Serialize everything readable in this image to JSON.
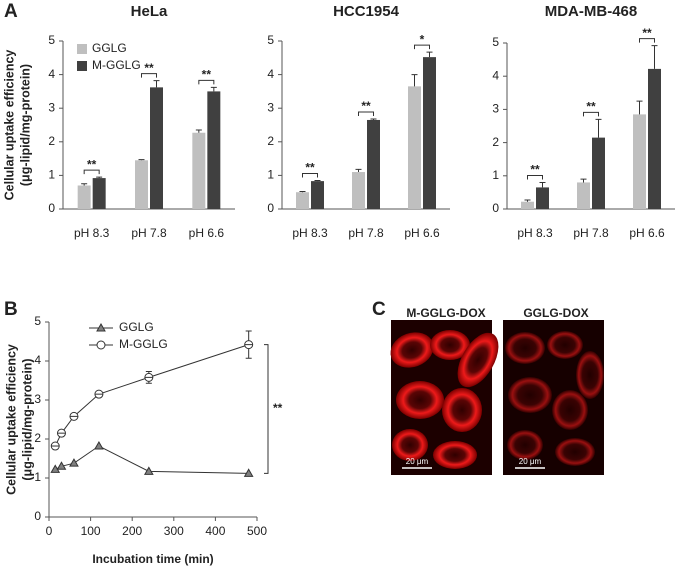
{
  "panel_labels": [
    "A",
    "B",
    "C"
  ],
  "images": [
    {
      "title": "M-GGLG-DOX",
      "scale_bar": "20 μm"
    },
    {
      "title": "GGLG-DOX",
      "scale_bar": "20 μm"
    }
  ],
  "chart_data": [
    {
      "type": "bar",
      "title": "HeLa",
      "ylabel": [
        "Cellular uptake efficiency",
        "(μg-lipid/mg-protein)"
      ],
      "categories": [
        "pH 8.3",
        "pH 7.8",
        "pH 6.6"
      ],
      "series": [
        {
          "name": "GGLG",
          "color": "#bfbfbf",
          "values": [
            0.7,
            1.45,
            2.27
          ],
          "errors": [
            0.05,
            0.02,
            0.08
          ]
        },
        {
          "name": "M-GGLG",
          "color": "#404040",
          "values": [
            0.92,
            3.62,
            3.5
          ],
          "errors": [
            0.03,
            0.2,
            0.12
          ]
        }
      ],
      "significance": [
        "**",
        "**",
        "**"
      ],
      "legend": "top-left",
      "ylim": [
        0,
        5
      ],
      "yticks": [
        0,
        1,
        2,
        3,
        4,
        5
      ]
    },
    {
      "type": "bar",
      "title": "HCC1954",
      "categories": [
        "pH 8.3",
        "pH 7.8",
        "pH 6.6"
      ],
      "series": [
        {
          "color": "#bfbfbf",
          "values": [
            0.5,
            1.1,
            3.65
          ],
          "errors": [
            0.02,
            0.08,
            0.35
          ]
        },
        {
          "color": "#404040",
          "values": [
            0.83,
            2.65,
            4.52
          ],
          "errors": [
            0.02,
            0.03,
            0.15
          ]
        }
      ],
      "significance": [
        "**",
        "**",
        "*"
      ],
      "ylim": [
        0,
        5
      ],
      "yticks": [
        0,
        1,
        2,
        3,
        4,
        5
      ]
    },
    {
      "type": "bar",
      "title": "MDA-MB-468",
      "categories": [
        "pH 8.3",
        "pH 7.8",
        "pH 6.6"
      ],
      "series": [
        {
          "color": "#bfbfbf",
          "values": [
            0.22,
            0.8,
            2.85
          ],
          "errors": [
            0.05,
            0.1,
            0.4
          ]
        },
        {
          "color": "#404040",
          "values": [
            0.65,
            2.15,
            4.22
          ],
          "errors": [
            0.15,
            0.55,
            0.7
          ]
        }
      ],
      "significance": [
        "**",
        "**",
        "**"
      ],
      "ylim": [
        0,
        5
      ],
      "yticks": [
        0,
        1,
        2,
        3,
        4,
        5
      ]
    },
    {
      "type": "line",
      "xlabel": "Incubation time (min)",
      "ylabel": [
        "Cellular uptake efficiency",
        "(μg-lipid/mg-protein)"
      ],
      "x": [
        15,
        30,
        60,
        120,
        240,
        480
      ],
      "series": [
        {
          "name": "GGLG",
          "marker": "triangle",
          "color": "#808080",
          "values": [
            1.22,
            1.3,
            1.38,
            1.82,
            1.17,
            1.12
          ]
        },
        {
          "name": "M-GGLG",
          "marker": "circle",
          "color": "#ffffff",
          "values": [
            1.82,
            2.15,
            2.58,
            3.15,
            3.58,
            4.42
          ],
          "errors": [
            0.05,
            0.05,
            0.05,
            0.05,
            0.15,
            0.35
          ]
        }
      ],
      "significance": "**",
      "legend": "top-left",
      "xlim": [
        0,
        500
      ],
      "xticks": [
        0,
        100,
        200,
        300,
        400,
        500
      ],
      "ylim": [
        0,
        5
      ],
      "yticks": [
        0,
        1,
        2,
        3,
        4,
        5
      ]
    }
  ]
}
